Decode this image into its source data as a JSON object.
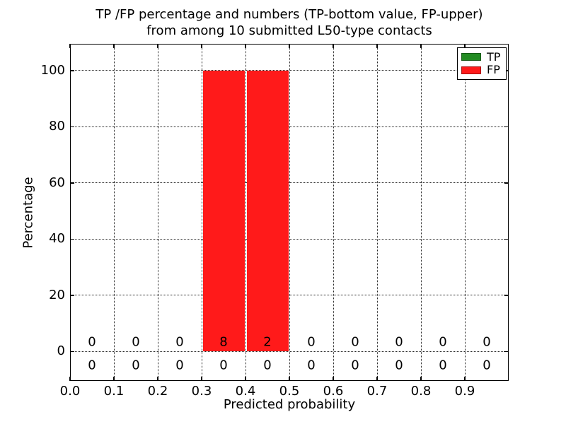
{
  "chart_data": {
    "type": "bar",
    "title_line1": "TP /FP percentage and numbers (TP-bottom value, FP-upper)",
    "title_line2": "from among 10 submitted L50-type contacts",
    "xlabel": "Predicted probability",
    "ylabel": "Percentage",
    "xlim": [
      0.0,
      1.0
    ],
    "ylim": [
      -10.5,
      109.5
    ],
    "xticks": [
      "0.0",
      "0.1",
      "0.2",
      "0.3",
      "0.4",
      "0.5",
      "0.6",
      "0.7",
      "0.8",
      "0.9"
    ],
    "xtick_values": [
      0.0,
      0.1,
      0.2,
      0.3,
      0.4,
      0.5,
      0.6,
      0.7,
      0.8,
      0.9
    ],
    "yticks": [
      "0",
      "20",
      "40",
      "60",
      "80",
      "100"
    ],
    "ytick_values": [
      0,
      20,
      40,
      60,
      80,
      100
    ],
    "grid": true,
    "bin_edges": [
      0.0,
      0.1,
      0.2,
      0.3,
      0.4,
      0.5,
      0.6,
      0.7,
      0.8,
      0.9,
      1.0
    ],
    "bin_centers": [
      0.05,
      0.15,
      0.25,
      0.35,
      0.45,
      0.55,
      0.65,
      0.75,
      0.85,
      0.95
    ],
    "series": [
      {
        "name": "TP",
        "color": "#228B22",
        "count_row": "lower",
        "percent": [
          0,
          0,
          0,
          0,
          0,
          0,
          0,
          0,
          0,
          0
        ],
        "counts": [
          0,
          0,
          0,
          0,
          0,
          0,
          0,
          0,
          0,
          0
        ]
      },
      {
        "name": "FP",
        "color": "#FF1A1A",
        "count_row": "upper",
        "percent": [
          0,
          0,
          0,
          100,
          100,
          0,
          0,
          0,
          0,
          0
        ],
        "counts": [
          0,
          0,
          0,
          8,
          2,
          0,
          0,
          0,
          0,
          0
        ]
      }
    ],
    "legend": {
      "position": "upper right",
      "entries": [
        {
          "label": "TP",
          "color": "#228B22"
        },
        {
          "label": "FP",
          "color": "#FF1A1A"
        }
      ]
    }
  }
}
